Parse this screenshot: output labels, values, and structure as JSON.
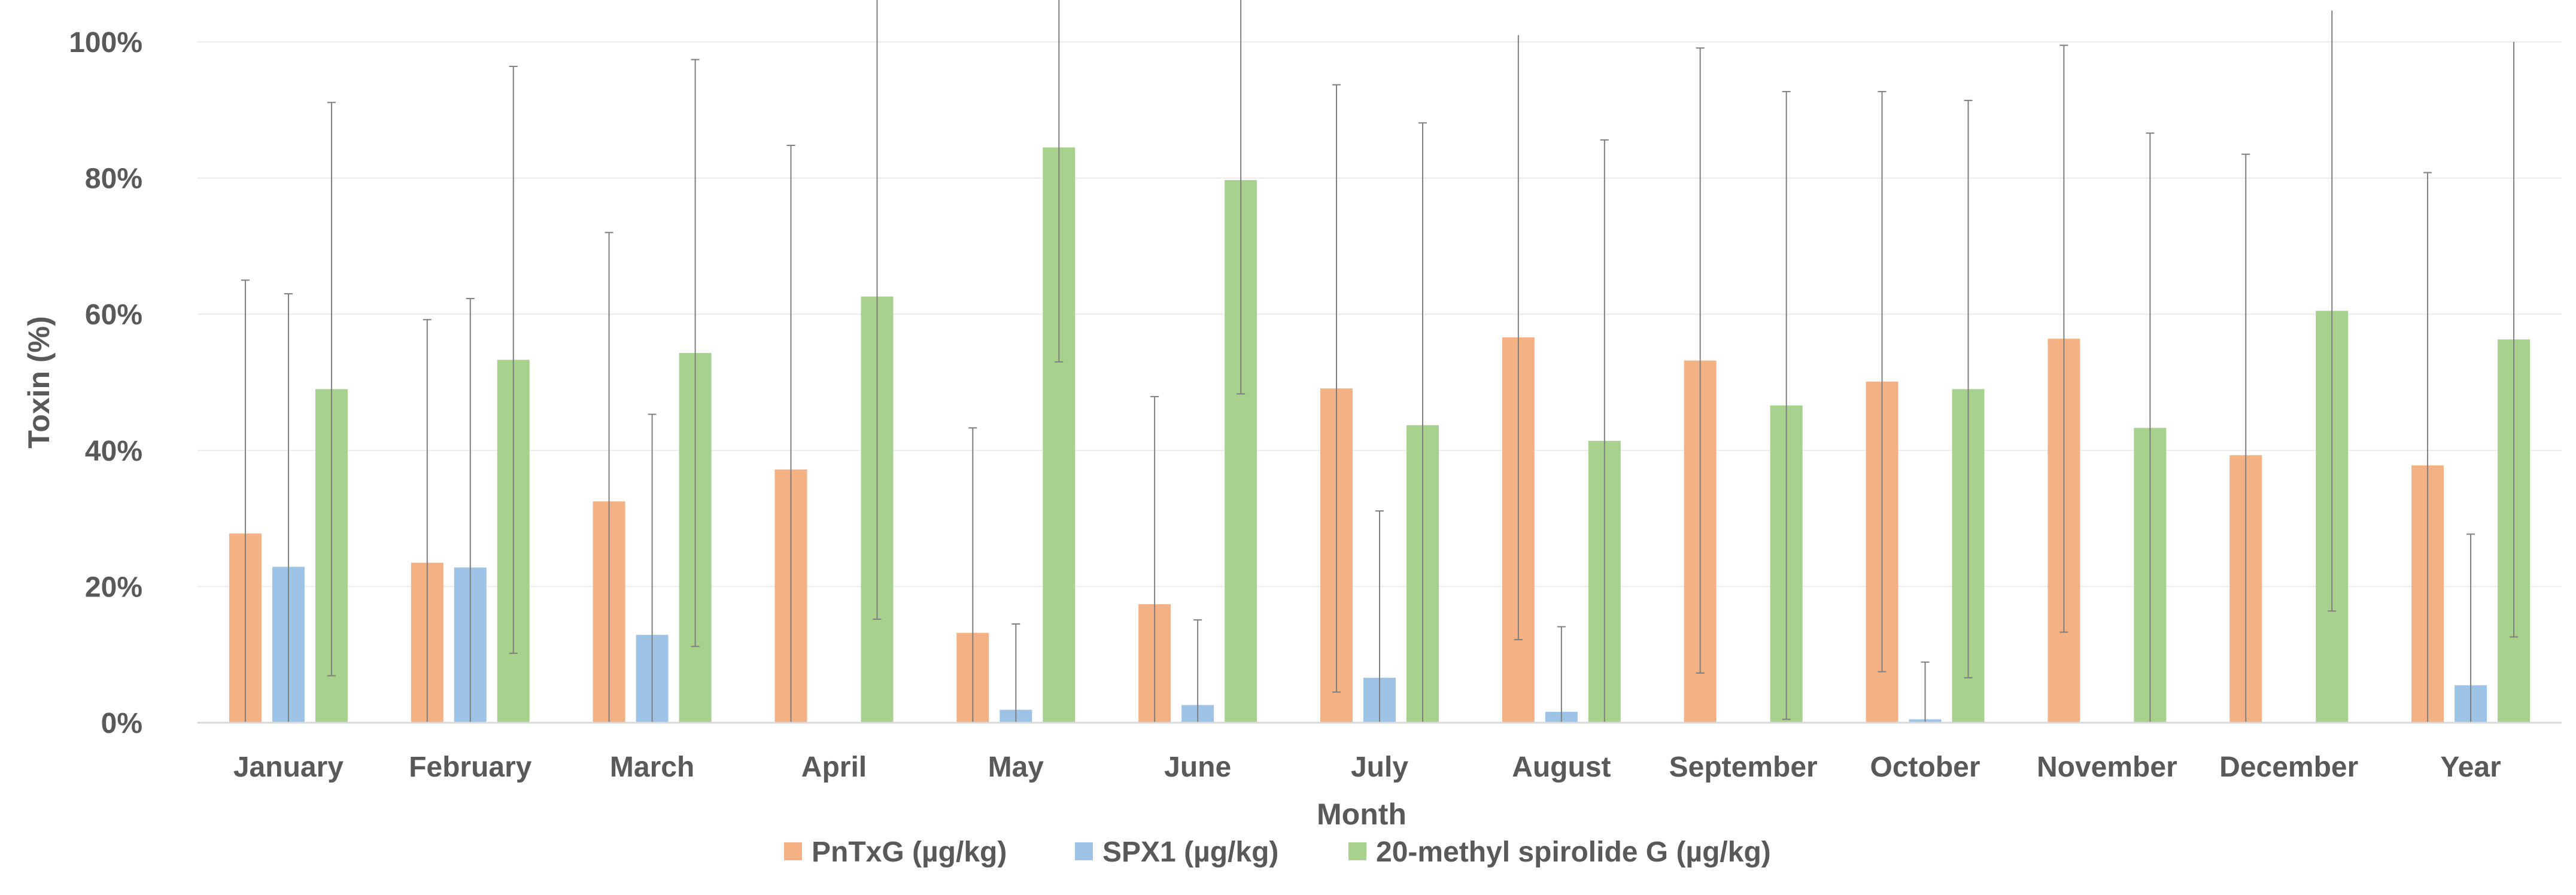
{
  "chart_data": {
    "type": "bar",
    "title": "",
    "xlabel": "Month",
    "ylabel": "Toxin (%)",
    "ylim": [
      0,
      100
    ],
    "yticks": [
      0,
      20,
      40,
      60,
      80,
      100
    ],
    "ytick_labels": [
      "0%",
      "20%",
      "40%",
      "60%",
      "80%",
      "100%"
    ],
    "categories": [
      "January",
      "February",
      "March",
      "April",
      "May",
      "June",
      "July",
      "August",
      "September",
      "October",
      "November",
      "December",
      "Year"
    ],
    "legend_position": "bottom",
    "series": [
      {
        "name": "PnTxG (µg/kg)",
        "color": "#F4B183",
        "values": [
          27.8,
          23.5,
          32.5,
          37.2,
          13.2,
          17.4,
          49.1,
          56.6,
          53.2,
          50.1,
          56.4,
          39.3,
          37.8
        ],
        "error": [
          37.2,
          35.7,
          39.5,
          47.6,
          30.1,
          30.5,
          44.6,
          44.4,
          45.9,
          42.6,
          43.1,
          44.2,
          43.0
        ]
      },
      {
        "name": "SPX1 (µg/kg)",
        "color": "#9DC3E6",
        "values": [
          22.9,
          22.8,
          12.9,
          null,
          1.9,
          2.6,
          6.6,
          1.6,
          null,
          0.5,
          null,
          null,
          5.5
        ],
        "error": [
          40.1,
          39.5,
          32.4,
          null,
          12.6,
          12.5,
          24.5,
          12.5,
          null,
          8.4,
          null,
          null,
          22.2
        ]
      },
      {
        "name": "20-methyl spirolide G (µg/kg)",
        "color": "#A9D18E",
        "values": [
          49.0,
          53.3,
          54.3,
          62.6,
          84.5,
          79.7,
          43.7,
          41.4,
          46.6,
          49.0,
          43.3,
          60.5,
          56.3
        ],
        "error": [
          42.1,
          43.1,
          43.1,
          47.4,
          31.5,
          31.4,
          44.4,
          44.2,
          46.1,
          42.4,
          43.3,
          44.1,
          43.7
        ]
      }
    ]
  }
}
